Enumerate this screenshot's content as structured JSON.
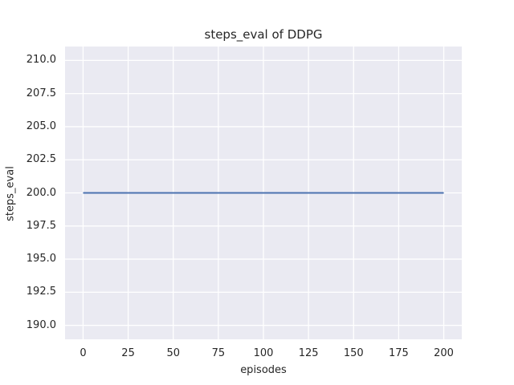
{
  "chart_data": {
    "type": "line",
    "title": "steps_eval of DDPG",
    "xlabel": "episodes",
    "ylabel": "steps_eval",
    "xlim": [
      -10,
      210
    ],
    "ylim": [
      188.95,
      211.05
    ],
    "x_ticks": [
      0,
      25,
      50,
      75,
      100,
      125,
      150,
      175,
      200
    ],
    "y_ticks": [
      190.0,
      192.5,
      195.0,
      197.5,
      200.0,
      202.5,
      205.0,
      207.5,
      210.0
    ],
    "y_tick_labels": [
      "190.0",
      "192.5",
      "195.0",
      "197.5",
      "200.0",
      "202.5",
      "205.0",
      "207.5",
      "210.0"
    ],
    "x_tick_labels": [
      "0",
      "25",
      "50",
      "75",
      "100",
      "125",
      "150",
      "175",
      "200"
    ],
    "grid": true,
    "legend_position": "none",
    "series": [
      {
        "name": "steps_eval",
        "x": [
          0,
          200
        ],
        "y": [
          200.0,
          200.0
        ],
        "color": "#4C72B0",
        "line_width": 2
      }
    ],
    "styles": {
      "figure_bg": "#FFFFFF",
      "plot_bg": "#EAEAF2",
      "grid_color": "#FFFFFF",
      "text_color": "#262626"
    }
  }
}
